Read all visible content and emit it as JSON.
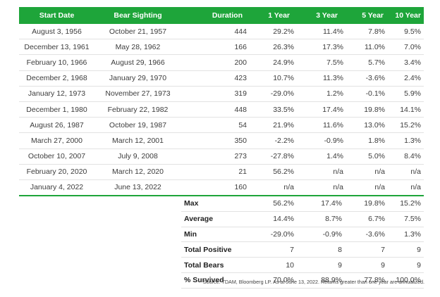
{
  "table": {
    "headers": [
      "Start Date",
      "Bear Sighting",
      "Duration",
      "1 Year",
      "3 Year",
      "5 Year",
      "10 Year"
    ],
    "rows": [
      [
        "August 3, 1956",
        "October 21, 1957",
        "444",
        "29.2%",
        "11.4%",
        "7.8%",
        "9.5%"
      ],
      [
        "December 13, 1961",
        "May 28, 1962",
        "166",
        "26.3%",
        "17.3%",
        "11.0%",
        "7.0%"
      ],
      [
        "February 10, 1966",
        "August 29, 1966",
        "200",
        "24.9%",
        "7.5%",
        "5.7%",
        "3.4%"
      ],
      [
        "December 2, 1968",
        "January 29, 1970",
        "423",
        "10.7%",
        "11.3%",
        "-3.6%",
        "2.4%"
      ],
      [
        "January 12, 1973",
        "November 27, 1973",
        "319",
        "-29.0%",
        "1.2%",
        "-0.1%",
        "5.9%"
      ],
      [
        "December 1, 1980",
        "February 22, 1982",
        "448",
        "33.5%",
        "17.4%",
        "19.8%",
        "14.1%"
      ],
      [
        "August 26, 1987",
        "October 19, 1987",
        "54",
        "21.9%",
        "11.6%",
        "13.0%",
        "15.2%"
      ],
      [
        "March 27, 2000",
        "March 12, 2001",
        "350",
        "-2.2%",
        "-0.9%",
        "1.8%",
        "1.3%"
      ],
      [
        "October 10, 2007",
        "July 9, 2008",
        "273",
        "-27.8%",
        "1.4%",
        "5.0%",
        "8.4%"
      ],
      [
        "February 20, 2020",
        "March 12, 2020",
        "21",
        "56.2%",
        "n/a",
        "n/a",
        "n/a"
      ],
      [
        "January 4, 2022",
        "June 13, 2022",
        "160",
        "n/a",
        "n/a",
        "n/a",
        "n/a"
      ]
    ],
    "summary": [
      [
        "Max",
        "56.2%",
        "17.4%",
        "19.8%",
        "15.2%"
      ],
      [
        "Average",
        "14.4%",
        "8.7%",
        "6.7%",
        "7.5%"
      ],
      [
        "Min",
        "-29.0%",
        "-0.9%",
        "-3.6%",
        "1.3%"
      ],
      [
        "Total Positive",
        "7",
        "8",
        "7",
        "9"
      ],
      [
        "Total Bears",
        "10",
        "9",
        "9",
        "9"
      ],
      [
        "% Survived",
        "70.0%",
        "88.9%",
        "77.8%",
        "100.0%"
      ]
    ]
  },
  "source": "Source: TDAM, Bloomberg LP. As at June 13, 2022. Returns greater than one year are annualized.",
  "colors": {
    "header_bg": "#1ea53a",
    "header_text": "#ffffff",
    "row_divider": "#e2e2e2"
  }
}
